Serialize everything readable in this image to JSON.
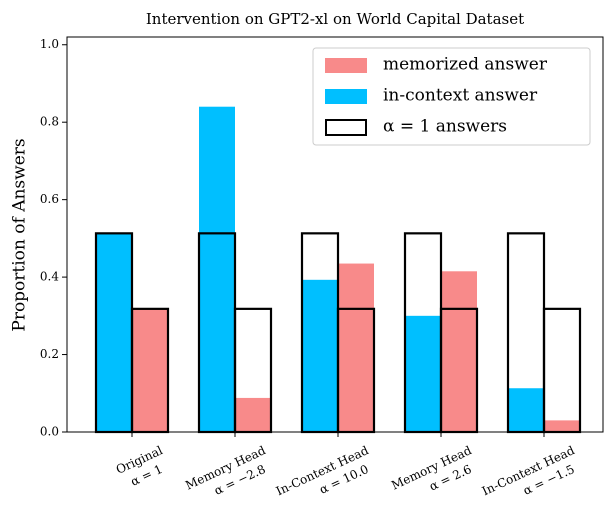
{
  "chart_data": {
    "type": "bar",
    "title": "Intervention on GPT2-xl on World Capital Dataset",
    "ylabel": "Proportion of Answers",
    "categories": [
      [
        "Original",
        "α = 1"
      ],
      [
        "Memory Head",
        "α = −2.8"
      ],
      [
        "In-Context Head",
        "α = 10.0"
      ],
      [
        "Memory Head",
        "α = 2.6"
      ],
      [
        "In-Context Head",
        "α = −1.5"
      ]
    ],
    "series": [
      {
        "name": "in-context answer",
        "color": "#00bfff",
        "values": [
          0.513,
          0.84,
          0.393,
          0.3,
          0.113
        ]
      },
      {
        "name": "memorized answer",
        "color": "#f88a8a",
        "values": [
          0.318,
          0.088,
          0.435,
          0.415,
          0.03
        ]
      }
    ],
    "outline": {
      "name": "α = 1 answers",
      "color": "#000000",
      "values": [
        0.513,
        0.318
      ]
    },
    "ylim": [
      0,
      1.02
    ],
    "yticks": [
      {
        "value": 0,
        "label": "0.0"
      },
      0.2,
      0.4,
      0.6,
      0.8,
      {
        "value": 1,
        "label": "1.0"
      }
    ]
  }
}
